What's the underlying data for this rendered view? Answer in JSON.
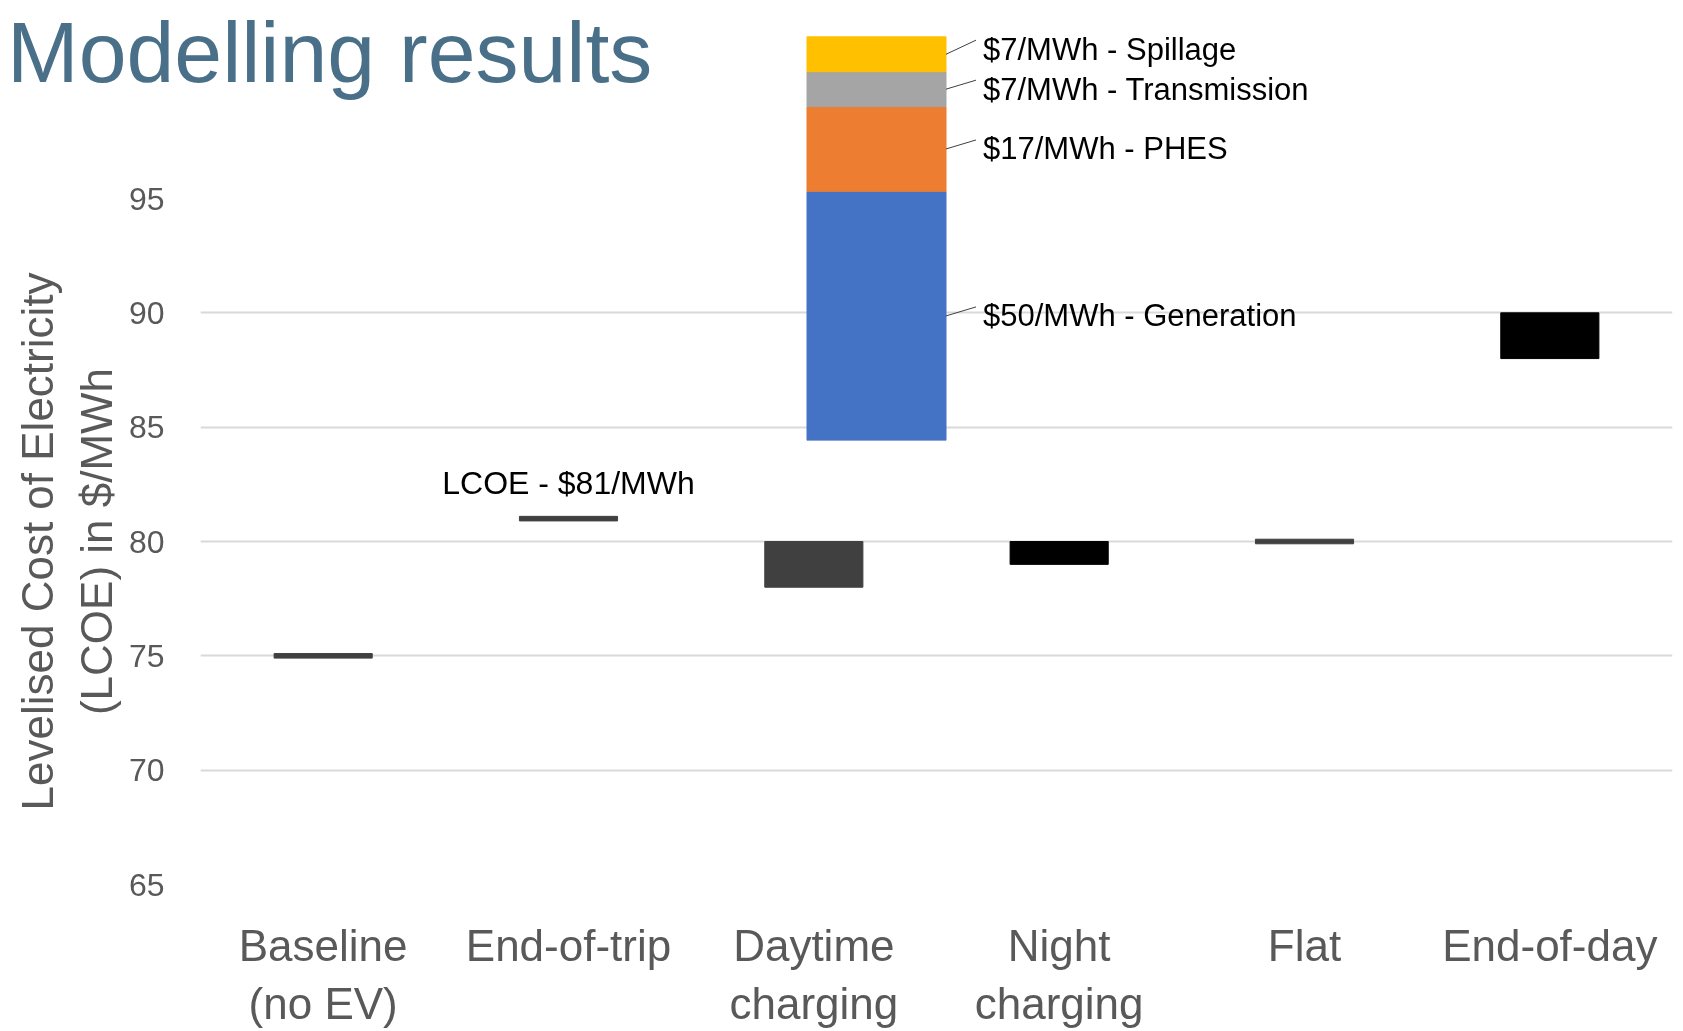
{
  "chart_data": [
    {
      "type": "bar",
      "title": "Modelling results",
      "ylabel": "Levelised Cost of Electricity\n(LCOE) in $/MWh",
      "categories": [
        "Baseline\n(no EV)",
        "End-of-trip",
        "Daytime\ncharging",
        "Night\ncharging",
        "Flat",
        "End-of-day"
      ],
      "base": [
        74.9,
        80.9,
        78,
        79,
        79.9,
        88
      ],
      "values": [
        0.2,
        0.2,
        2,
        1,
        0.2,
        2
      ],
      "colors": [
        "#404040",
        "#404040",
        "#404040",
        "#000000",
        "#404040",
        "#000000"
      ],
      "ylim": [
        65,
        95
      ],
      "yticks": [
        65,
        70,
        75,
        80,
        85,
        90,
        95
      ],
      "grid": "y",
      "annotations": [
        {
          "text": "LCOE - $81/MWh",
          "x": "End-of-trip",
          "y": 81
        }
      ]
    },
    {
      "type": "bar",
      "stacked": true,
      "categories": [
        null
      ],
      "series": [
        {
          "color": "#4472c4",
          "values": [
            50
          ],
          "value_labels": [
            "$50/MWh - Generation"
          ]
        },
        {
          "color": "#ed7d31",
          "values": [
            17
          ],
          "value_labels": [
            "$17/MWh - PHES"
          ]
        },
        {
          "color": "#a5a5a5",
          "values": [
            7
          ],
          "value_labels": [
            "$7/MWh - Transmission"
          ]
        },
        {
          "color": "#ffc000",
          "values": [
            7
          ],
          "value_labels": [
            "$7/MWh - Spillage"
          ]
        }
      ]
    }
  ]
}
